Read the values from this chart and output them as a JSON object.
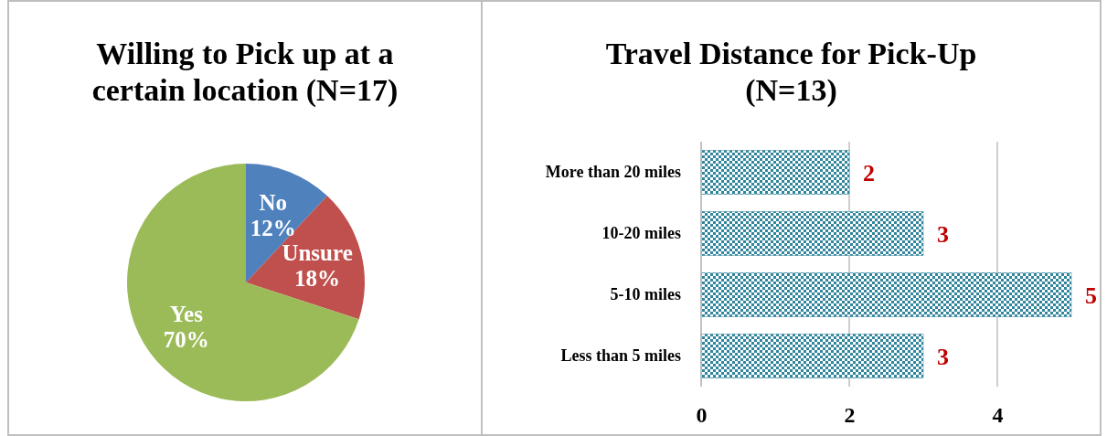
{
  "chart_data": [
    {
      "type": "pie",
      "title": "Willing to Pick up at a certain location (N=17)",
      "categories": [
        "No",
        "Unsure",
        "Yes"
      ],
      "values": [
        12,
        18,
        70
      ],
      "colors": [
        "#4f81bd",
        "#c0504d",
        "#9bbb59"
      ],
      "value_labels": [
        "12%",
        "18%",
        "70%"
      ]
    },
    {
      "type": "bar",
      "orientation": "horizontal",
      "title": "Travel Distance for Pick-Up (N=13)",
      "categories": [
        "More than 20 miles",
        "10-20 miles",
        "5-10 miles",
        "Less than 5 miles"
      ],
      "values": [
        2,
        3,
        5,
        3
      ],
      "color": "#31859c",
      "xlim": [
        0,
        5
      ],
      "xticks": [
        0,
        2,
        4
      ],
      "grid": "x",
      "data_labels": true
    }
  ]
}
